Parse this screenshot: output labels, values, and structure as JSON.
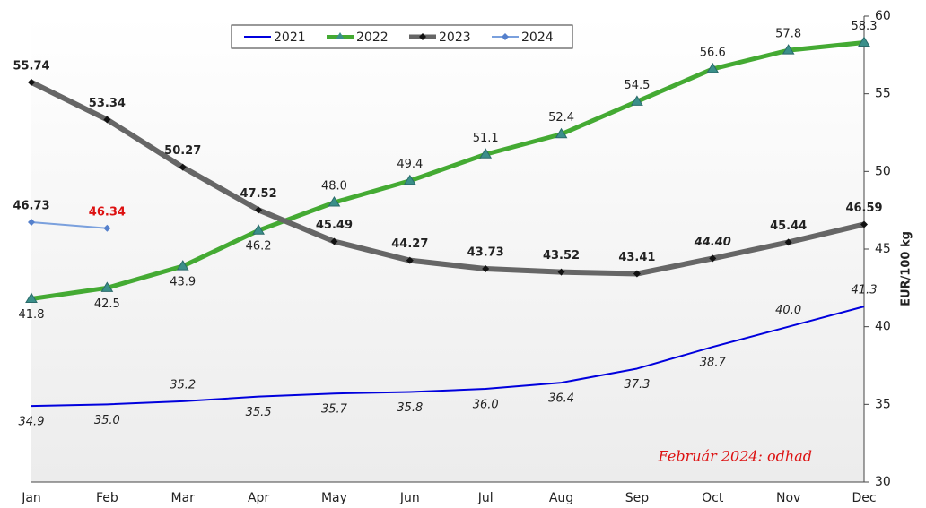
{
  "chart_data": {
    "type": "line",
    "categories": [
      "Jan",
      "Feb",
      "Mar",
      "Apr",
      "May",
      "Jun",
      "Jul",
      "Aug",
      "Sep",
      "Oct",
      "Nov",
      "Dec"
    ],
    "series": [
      {
        "name": "2021",
        "color": "#0000dd",
        "values": [
          34.9,
          35.0,
          35.2,
          35.5,
          35.7,
          35.8,
          36.0,
          36.4,
          37.3,
          38.7,
          40.0,
          41.3
        ],
        "value_labels": [
          "34.9",
          "35.0",
          "35.2",
          "35.5",
          "35.7",
          "35.8",
          "36.0",
          "36.4",
          "37.3",
          "38.7",
          "40.0",
          "41.3"
        ]
      },
      {
        "name": "2022",
        "color": "#44aa33",
        "values": [
          41.8,
          42.5,
          43.9,
          46.2,
          48.0,
          49.4,
          51.1,
          52.4,
          54.5,
          56.6,
          57.8,
          58.3
        ],
        "value_labels": [
          "41.8",
          "42.5",
          "43.9",
          "46.2",
          "48.0",
          "49.4",
          "51.1",
          "52.4",
          "54.5",
          "56.6",
          "57.8",
          "58.3"
        ]
      },
      {
        "name": "2023",
        "color": "#666666",
        "values": [
          55.74,
          53.34,
          50.27,
          47.52,
          45.49,
          44.27,
          43.73,
          43.52,
          43.41,
          44.4,
          45.44,
          46.59
        ],
        "value_labels": [
          "55.74",
          "53.34",
          "50.27",
          "47.52",
          "45.49",
          "44.27",
          "43.73",
          "43.52",
          "43.41",
          "44.40",
          "45.44",
          "46.59"
        ]
      },
      {
        "name": "2024",
        "color": "#7aa0dd",
        "values": [
          46.73,
          46.34,
          null,
          null,
          null,
          null,
          null,
          null,
          null,
          null,
          null,
          null
        ],
        "value_labels": [
          "46.73",
          "46.34",
          null,
          null,
          null,
          null,
          null,
          null,
          null,
          null,
          null,
          null
        ]
      }
    ],
    "y_label": "EUR/100 kg",
    "ylim": [
      30,
      60
    ],
    "yticks": [
      30,
      35,
      40,
      45,
      50,
      55,
      60
    ],
    "annotation": "Február 2024: odhad",
    "legend": "top"
  }
}
